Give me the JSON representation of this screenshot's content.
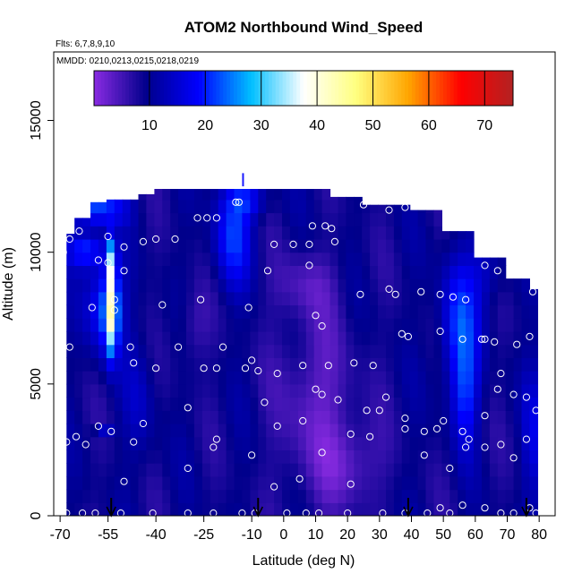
{
  "chart_data": {
    "type": "heatmap",
    "title": "ATOM2 Northbound Wind_Speed",
    "flights_note": "Flts: 6,7,8,9,10",
    "dates_note": "MMDD: 0210,0213,0215,0218,0219",
    "xlabel": "Latitude (deg N)",
    "ylabel": "Altitude (m)",
    "xlim": [
      -72,
      85
    ],
    "ylim": [
      0,
      17600
    ],
    "x_ticks": [
      -70,
      -55,
      -40,
      -25,
      -10,
      0,
      10,
      20,
      30,
      40,
      50,
      60,
      70,
      80
    ],
    "y_ticks": [
      0,
      5000,
      10000,
      15000
    ],
    "colorbar": {
      "range": [
        0,
        75
      ],
      "ticks": [
        10,
        20,
        30,
        40,
        50,
        60,
        70
      ],
      "colors": [
        "#8a2be2",
        "#00008b",
        "#0000ff",
        "#00bfff",
        "#ffffff",
        "#ffff80",
        "#ffa500",
        "#ff0000",
        "#b22222"
      ]
    },
    "profile_markers_lat": [
      -54,
      -8,
      39,
      76
    ],
    "sample_points": [
      [
        -69,
        10000
      ],
      [
        -67,
        10500
      ],
      [
        -64,
        10800
      ],
      [
        -55,
        10600
      ],
      [
        -50,
        10200
      ],
      [
        -44,
        10400
      ],
      [
        -40,
        10500
      ],
      [
        -34,
        10500
      ],
      [
        -27,
        11300
      ],
      [
        -24,
        11300
      ],
      [
        -21,
        11300
      ],
      [
        -15,
        11900
      ],
      [
        -14,
        11900
      ],
      [
        -3,
        10300
      ],
      [
        3,
        10300
      ],
      [
        8,
        10300
      ],
      [
        9,
        11000
      ],
      [
        13,
        11000
      ],
      [
        15,
        10900
      ],
      [
        16,
        10400
      ],
      [
        25,
        11800
      ],
      [
        33,
        11600
      ],
      [
        38,
        11700
      ],
      [
        63,
        9500
      ],
      [
        67,
        9300
      ],
      [
        78,
        8500
      ],
      [
        -58,
        9700
      ],
      [
        -55,
        9600
      ],
      [
        -50,
        9300
      ],
      [
        -53,
        8200
      ],
      [
        -53,
        7800
      ],
      [
        -60,
        7900
      ],
      [
        -38,
        8000
      ],
      [
        -26,
        8200
      ],
      [
        -11,
        7900
      ],
      [
        -5,
        9300
      ],
      [
        8,
        9500
      ],
      [
        10,
        7600
      ],
      [
        12,
        7200
      ],
      [
        24,
        8400
      ],
      [
        33,
        8600
      ],
      [
        35,
        8400
      ],
      [
        43,
        8500
      ],
      [
        49,
        8400
      ],
      [
        53,
        8300
      ],
      [
        57,
        8200
      ],
      [
        -67,
        6400
      ],
      [
        -48,
        6400
      ],
      [
        -33,
        6400
      ],
      [
        -19,
        6400
      ],
      [
        -10,
        5900
      ],
      [
        -2,
        5400
      ],
      [
        6,
        5700
      ],
      [
        14,
        5700
      ],
      [
        22,
        5800
      ],
      [
        28,
        5700
      ],
      [
        37,
        6900
      ],
      [
        39,
        6800
      ],
      [
        49,
        7000
      ],
      [
        56,
        6700
      ],
      [
        62,
        6700
      ],
      [
        63,
        6700
      ],
      [
        66,
        6600
      ],
      [
        73,
        6500
      ],
      [
        77,
        6800
      ],
      [
        -58,
        3400
      ],
      [
        -54,
        3200
      ],
      [
        -47,
        5800
      ],
      [
        -44,
        3500
      ],
      [
        -40,
        5600
      ],
      [
        -30,
        4100
      ],
      [
        -25,
        5600
      ],
      [
        -21,
        5600
      ],
      [
        -12,
        5600
      ],
      [
        -8,
        5500
      ],
      [
        -6,
        4300
      ],
      [
        -2,
        3400
      ],
      [
        6,
        3600
      ],
      [
        10,
        4800
      ],
      [
        12,
        4600
      ],
      [
        17,
        4400
      ],
      [
        21,
        3100
      ],
      [
        26,
        4000
      ],
      [
        30,
        4000
      ],
      [
        32,
        4500
      ],
      [
        38,
        3700
      ],
      [
        44,
        3200
      ],
      [
        48,
        3300
      ],
      [
        50,
        3600
      ],
      [
        56,
        3200
      ],
      [
        58,
        2900
      ],
      [
        63,
        3800
      ],
      [
        67,
        4800
      ],
      [
        68,
        5400
      ],
      [
        72,
        4600
      ],
      [
        76,
        4500
      ],
      [
        79,
        4000
      ],
      [
        -68,
        2800
      ],
      [
        -65,
        3000
      ],
      [
        -62,
        2700
      ],
      [
        -50,
        1300
      ],
      [
        -47,
        2800
      ],
      [
        -30,
        1800
      ],
      [
        -22,
        2600
      ],
      [
        -21,
        2900
      ],
      [
        -10,
        2300
      ],
      [
        -3,
        1100
      ],
      [
        5,
        1400
      ],
      [
        12,
        2400
      ],
      [
        21,
        1200
      ],
      [
        27,
        3000
      ],
      [
        38,
        3300
      ],
      [
        44,
        2300
      ],
      [
        52,
        1800
      ],
      [
        57,
        2600
      ],
      [
        63,
        2600
      ],
      [
        68,
        2700
      ],
      [
        72,
        2200
      ],
      [
        76,
        2900
      ],
      [
        -68,
        100
      ],
      [
        -63,
        100
      ],
      [
        -59,
        100
      ],
      [
        -51,
        100
      ],
      [
        -41,
        100
      ],
      [
        -30,
        100
      ],
      [
        -22,
        100
      ],
      [
        -13,
        100
      ],
      [
        -9,
        100
      ],
      [
        1,
        100
      ],
      [
        7,
        100
      ],
      [
        11,
        100
      ],
      [
        20,
        100
      ],
      [
        31,
        100
      ],
      [
        38,
        100
      ],
      [
        45,
        100
      ],
      [
        49,
        300
      ],
      [
        52,
        100
      ],
      [
        56,
        400
      ],
      [
        63,
        300
      ],
      [
        68,
        100
      ],
      [
        72,
        100
      ],
      [
        77,
        300
      ],
      [
        79,
        100
      ]
    ]
  }
}
